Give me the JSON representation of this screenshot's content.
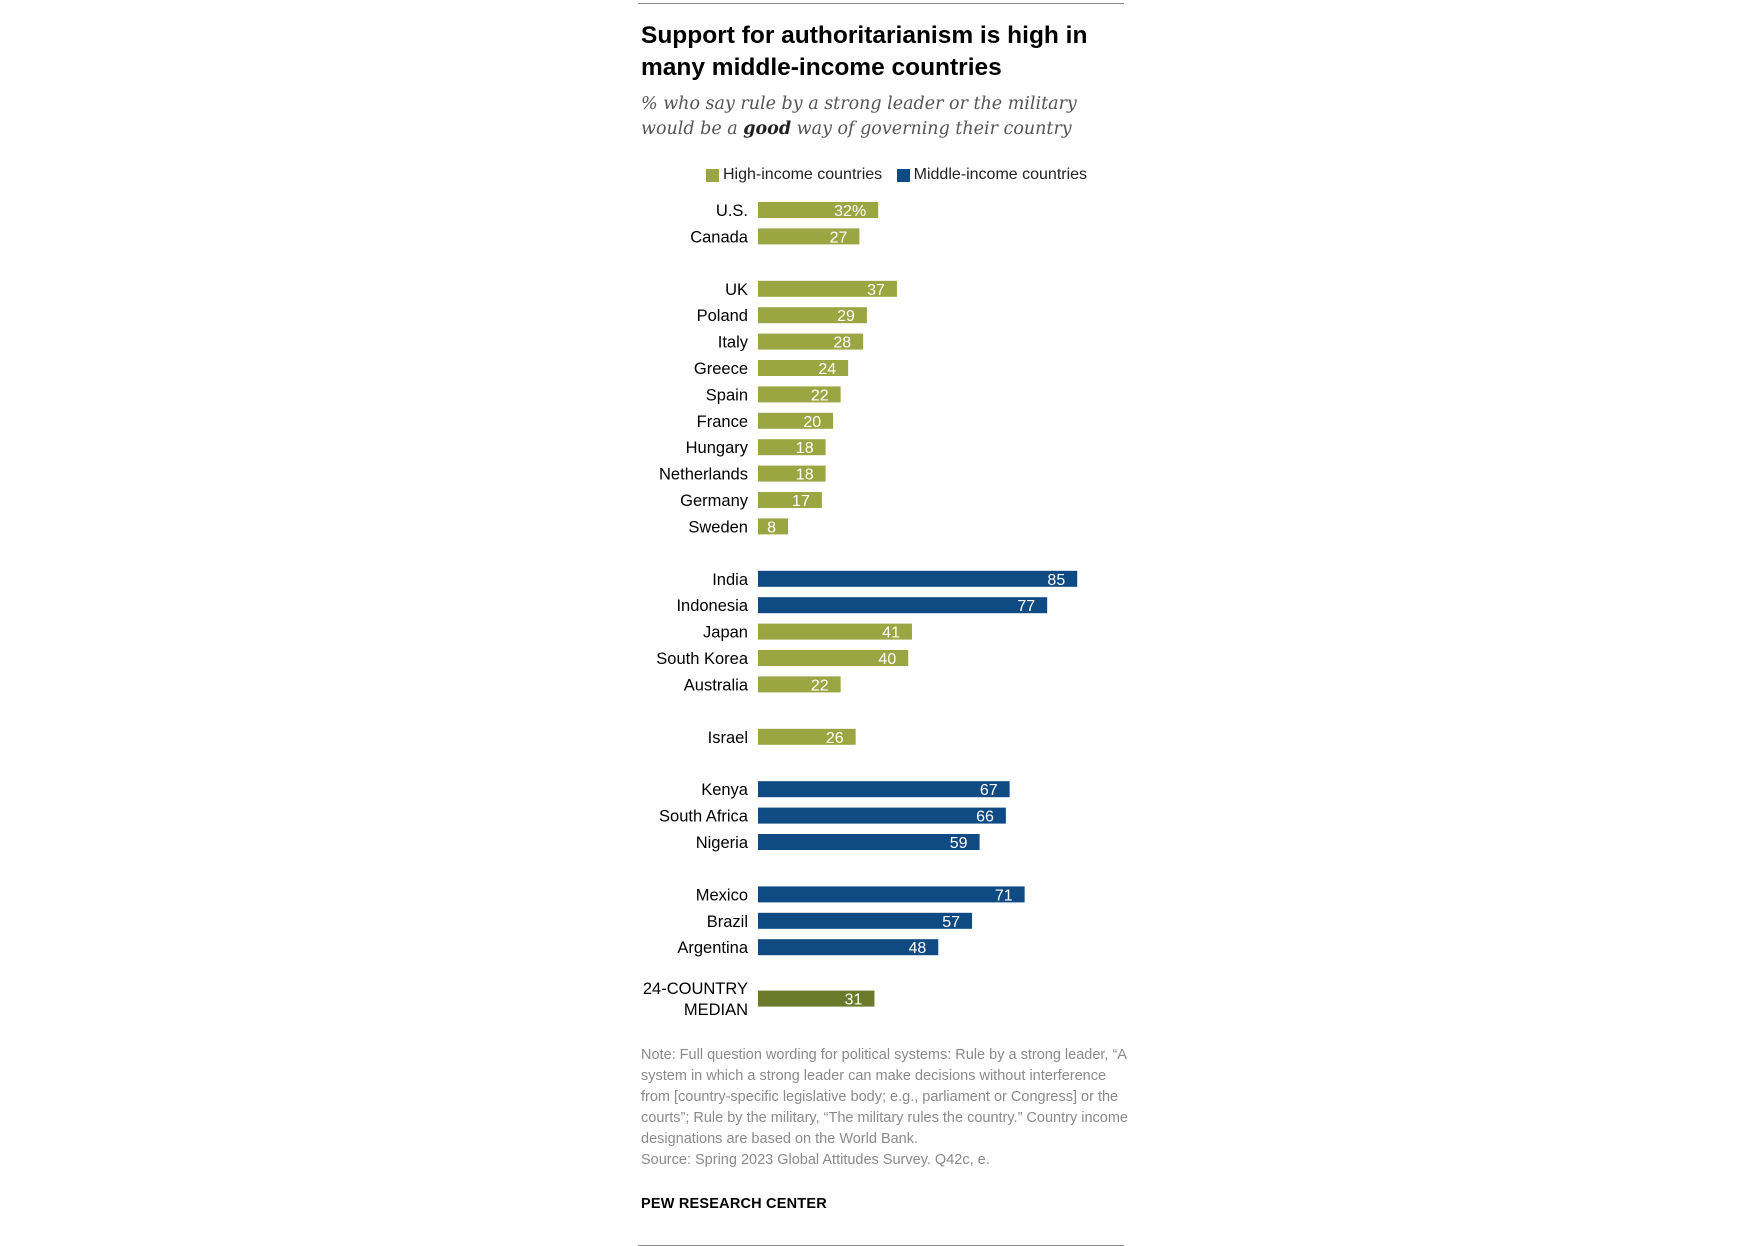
{
  "chart_data": {
    "type": "bar",
    "orientation": "horizontal",
    "title": "Support for authoritarianism is high in many middle-income countries",
    "subtitle": {
      "before": "% who say rule by a strong leader or the military would be a ",
      "emphasis": "good",
      "after": " way of governing their country"
    },
    "legend": [
      {
        "name": "High-income countries",
        "color": "#9aa642"
      },
      {
        "name": "Middle-income countries",
        "color": "#0f4a82"
      }
    ],
    "groups": [
      {
        "categories": [
          {
            "label": "U.S.",
            "value": 32,
            "display": "32%",
            "income": "high"
          },
          {
            "label": "Canada",
            "value": 27,
            "display": "27",
            "income": "high"
          }
        ]
      },
      {
        "categories": [
          {
            "label": "UK",
            "value": 37,
            "display": "37",
            "income": "high"
          },
          {
            "label": "Poland",
            "value": 29,
            "display": "29",
            "income": "high"
          },
          {
            "label": "Italy",
            "value": 28,
            "display": "28",
            "income": "high"
          },
          {
            "label": "Greece",
            "value": 24,
            "display": "24",
            "income": "high"
          },
          {
            "label": "Spain",
            "value": 22,
            "display": "22",
            "income": "high"
          },
          {
            "label": "France",
            "value": 20,
            "display": "20",
            "income": "high"
          },
          {
            "label": "Hungary",
            "value": 18,
            "display": "18",
            "income": "high"
          },
          {
            "label": "Netherlands",
            "value": 18,
            "display": "18",
            "income": "high"
          },
          {
            "label": "Germany",
            "value": 17,
            "display": "17",
            "income": "high"
          },
          {
            "label": "Sweden",
            "value": 8,
            "display": "8",
            "income": "high"
          }
        ]
      },
      {
        "categories": [
          {
            "label": "India",
            "value": 85,
            "display": "85",
            "income": "middle"
          },
          {
            "label": "Indonesia",
            "value": 77,
            "display": "77",
            "income": "middle"
          },
          {
            "label": "Japan",
            "value": 41,
            "display": "41",
            "income": "high"
          },
          {
            "label": "South Korea",
            "value": 40,
            "display": "40",
            "income": "high"
          },
          {
            "label": "Australia",
            "value": 22,
            "display": "22",
            "income": "high"
          }
        ]
      },
      {
        "categories": [
          {
            "label": "Israel",
            "value": 26,
            "display": "26",
            "income": "high"
          }
        ]
      },
      {
        "categories": [
          {
            "label": "Kenya",
            "value": 67,
            "display": "67",
            "income": "middle"
          },
          {
            "label": "South Africa",
            "value": 66,
            "display": "66",
            "income": "middle"
          },
          {
            "label": "Nigeria",
            "value": 59,
            "display": "59",
            "income": "middle"
          }
        ]
      },
      {
        "categories": [
          {
            "label": "Mexico",
            "value": 71,
            "display": "71",
            "income": "middle"
          },
          {
            "label": "Brazil",
            "value": 57,
            "display": "57",
            "income": "middle"
          },
          {
            "label": "Argentina",
            "value": 48,
            "display": "48",
            "income": "middle"
          }
        ]
      }
    ],
    "median": {
      "label_lines": [
        "24-COUNTRY",
        "MEDIAN"
      ],
      "value": 31,
      "display": "31",
      "color": "#6b7a2a"
    },
    "xlim": [
      0,
      100
    ],
    "grid": false,
    "legend_position": "top"
  },
  "note": "Note: Full question wording for political systems: Rule by a strong leader, “A system in which a strong leader can make decisions without interference from [country-specific legislative body; e.g., parliament or Congress] or the courts”; Rule by the military, “The military rules the country.” Country income designations are based on the World Bank.",
  "source": "Source: Spring 2023 Global Attitudes Survey. Q42c, e.",
  "brand": "PEW RESEARCH CENTER"
}
